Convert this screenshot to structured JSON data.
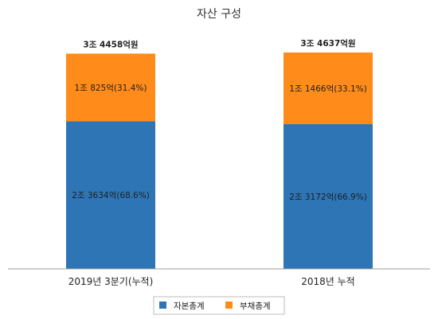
{
  "chart_data": {
    "type": "bar",
    "stacked": true,
    "title": "자산 구성",
    "xlabel": "",
    "ylabel": "",
    "categories": [
      "2019년 3분기(누적)",
      "2018년 누적"
    ],
    "totals": [
      34458,
      34637
    ],
    "total_labels": [
      "3조 4458억원",
      "3조 4637억원"
    ],
    "series": [
      {
        "name": "자본총계",
        "color": "#2e75b6",
        "values": [
          23634,
          23172
        ],
        "labels": [
          "2조 3634억(68.6%)",
          "2조 3172억(66.9%)"
        ]
      },
      {
        "name": "부채총계",
        "color": "#ff8c1a",
        "values": [
          10825,
          11466
        ],
        "labels": [
          "1조 825억(31.4%)",
          "1조 1466억(33.1%)"
        ]
      }
    ],
    "grid": false,
    "legend_position": "bottom"
  }
}
